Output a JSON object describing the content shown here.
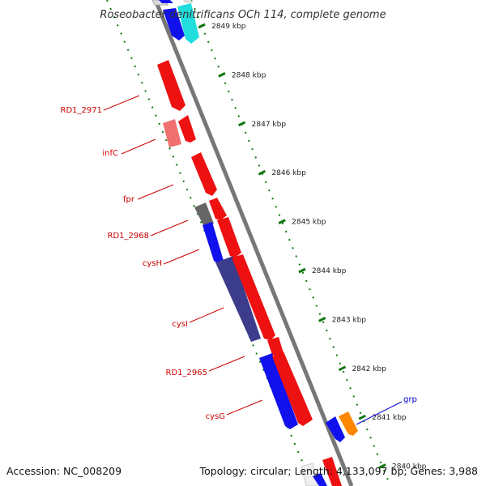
{
  "title": "Roseobacter denitrificans OCh 114, complete genome",
  "footer": {
    "accession": "Accession: NC_008209",
    "topology": "Topology: circular; Length: 4,133,097 bp; Genes: 3,988"
  },
  "colors": {
    "forward_strand": "#ee1111",
    "reverse_strand": "#1111ee",
    "light_red": "#f07070",
    "cyan": "#22dddd",
    "orange": "#ff8800",
    "gray": "#666666",
    "navy": "#3c3c8c",
    "ticks": "#117711",
    "backbone": "#777777",
    "label_red": "#cc0000",
    "label_blue": "#0000cc"
  },
  "ticks": [
    {
      "kbp": 2849,
      "label": "2849 kbp"
    },
    {
      "kbp": 2848,
      "label": "2848 kbp"
    },
    {
      "kbp": 2847,
      "label": "2847 kbp"
    },
    {
      "kbp": 2846,
      "label": "2846 kbp"
    },
    {
      "kbp": 2845,
      "label": "2845 kbp"
    },
    {
      "kbp": 2844,
      "label": "2844 kbp"
    },
    {
      "kbp": 2843,
      "label": "2843 kbp"
    },
    {
      "kbp": 2842,
      "label": "2842 kbp"
    },
    {
      "kbp": 2841,
      "label": "2841 kbp"
    },
    {
      "kbp": 2840,
      "label": "2840 kbp"
    }
  ],
  "gene_labels": [
    {
      "text": "RD1_2971",
      "color": "label_red"
    },
    {
      "text": "infC",
      "color": "label_red"
    },
    {
      "text": "fpr",
      "color": "label_red"
    },
    {
      "text": "RD1_2968",
      "color": "label_red"
    },
    {
      "text": "cysH",
      "color": "label_red"
    },
    {
      "text": "cysI",
      "color": "label_red"
    },
    {
      "text": "RD1_2965",
      "color": "label_red"
    },
    {
      "text": "cysG",
      "color": "label_red"
    },
    {
      "text": "grp",
      "color": "label_blue"
    }
  ]
}
